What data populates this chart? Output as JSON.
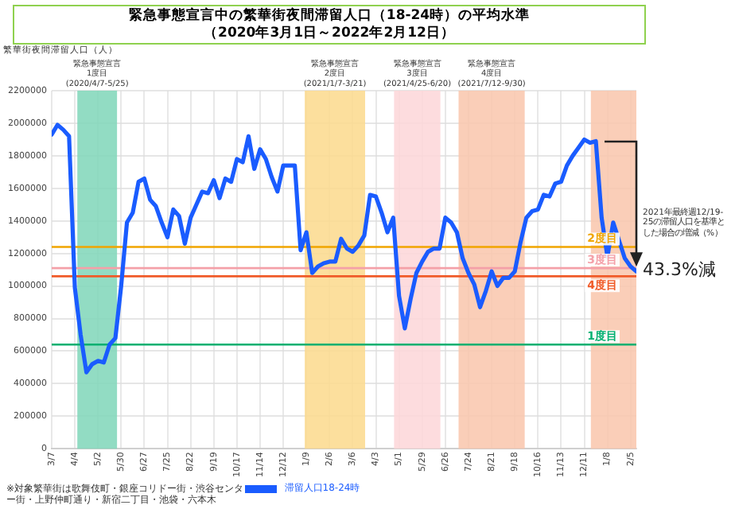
{
  "chart_data": {
    "type": "line",
    "title": "緊急事態宣言中の繁華街夜間滞留人口（18-24時）の平均水準",
    "subtitle": "（2020年3月1日～2022年2月12日）",
    "ylabel": "繁華街夜間滞留人口（人）",
    "x": [
      "2020-03-07",
      "2020-03-14",
      "2020-03-21",
      "2020-03-28",
      "2020-04-04",
      "2020-04-11",
      "2020-04-18",
      "2020-04-25",
      "2020-05-02",
      "2020-05-09",
      "2020-05-16",
      "2020-05-23",
      "2020-05-30",
      "2020-06-06",
      "2020-06-13",
      "2020-06-20",
      "2020-06-27",
      "2020-07-04",
      "2020-07-11",
      "2020-07-18",
      "2020-07-25",
      "2020-08-01",
      "2020-08-08",
      "2020-08-15",
      "2020-08-22",
      "2020-08-29",
      "2020-09-05",
      "2020-09-12",
      "2020-09-19",
      "2020-09-26",
      "2020-10-03",
      "2020-10-10",
      "2020-10-17",
      "2020-10-24",
      "2020-10-31",
      "2020-11-07",
      "2020-11-14",
      "2020-11-21",
      "2020-11-28",
      "2020-12-05",
      "2020-12-12",
      "2020-12-19",
      "2020-12-26",
      "2021-01-02",
      "2021-01-09",
      "2021-01-16",
      "2021-01-23",
      "2021-01-30",
      "2021-02-06",
      "2021-02-13",
      "2021-02-20",
      "2021-02-27",
      "2021-03-06",
      "2021-03-13",
      "2021-03-20",
      "2021-03-27",
      "2021-04-03",
      "2021-04-10",
      "2021-04-17",
      "2021-04-24",
      "2021-05-01",
      "2021-05-08",
      "2021-05-15",
      "2021-05-22",
      "2021-05-29",
      "2021-06-05",
      "2021-06-12",
      "2021-06-19",
      "2021-06-26",
      "2021-07-03",
      "2021-07-10",
      "2021-07-17",
      "2021-07-24",
      "2021-07-31",
      "2021-08-07",
      "2021-08-14",
      "2021-08-21",
      "2021-08-28",
      "2021-09-04",
      "2021-09-11",
      "2021-09-18",
      "2021-09-25",
      "2021-10-02",
      "2021-10-09",
      "2021-10-16",
      "2021-10-23",
      "2021-10-30",
      "2021-11-06",
      "2021-11-13",
      "2021-11-20",
      "2021-11-27",
      "2021-12-04",
      "2021-12-11",
      "2021-12-18",
      "2021-12-25",
      "2022-01-01",
      "2022-01-08",
      "2022-01-15",
      "2022-01-22",
      "2022-01-29",
      "2022-02-05",
      "2022-02-12"
    ],
    "series": [
      {
        "name": "滞留人口18-24時",
        "color": "#1a5cff",
        "values": [
          1930000,
          1990000,
          1960000,
          1920000,
          990000,
          700000,
          470000,
          520000,
          540000,
          530000,
          640000,
          680000,
          1000000,
          1390000,
          1450000,
          1640000,
          1660000,
          1530000,
          1490000,
          1390000,
          1300000,
          1470000,
          1430000,
          1260000,
          1420000,
          1500000,
          1580000,
          1570000,
          1650000,
          1540000,
          1660000,
          1640000,
          1780000,
          1760000,
          1920000,
          1720000,
          1840000,
          1780000,
          1670000,
          1580000,
          1740000,
          1740000,
          1740000,
          1220000,
          1330000,
          1080000,
          1120000,
          1140000,
          1150000,
          1150000,
          1290000,
          1230000,
          1210000,
          1250000,
          1310000,
          1560000,
          1550000,
          1450000,
          1330000,
          1420000,
          940000,
          740000,
          920000,
          1080000,
          1150000,
          1210000,
          1230000,
          1230000,
          1420000,
          1390000,
          1330000,
          1170000,
          1080000,
          1010000,
          870000,
          970000,
          1090000,
          1000000,
          1050000,
          1050000,
          1090000,
          1270000,
          1420000,
          1460000,
          1470000,
          1560000,
          1550000,
          1630000,
          1640000,
          1740000,
          1800000,
          1850000,
          1900000,
          1880000,
          1890000,
          1420000,
          1180000,
          1390000,
          1280000,
          1170000,
          1120000,
          1090000
        ]
      }
    ],
    "xlim": [
      "2020-03-07",
      "2022-02-12"
    ],
    "xticks": [
      {
        "value": "2020-03-07",
        "label": "3/7"
      },
      {
        "value": "2020-04-04",
        "label": "4/4"
      },
      {
        "value": "2020-05-02",
        "label": "5/2"
      },
      {
        "value": "2020-05-30",
        "label": "5/30"
      },
      {
        "value": "2020-06-27",
        "label": "6/27"
      },
      {
        "value": "2020-07-25",
        "label": "7/25"
      },
      {
        "value": "2020-08-22",
        "label": "8/22"
      },
      {
        "value": "2020-09-19",
        "label": "9/19"
      },
      {
        "value": "2020-10-17",
        "label": "10/17"
      },
      {
        "value": "2020-11-14",
        "label": "11/14"
      },
      {
        "value": "2020-12-12",
        "label": "12/12"
      },
      {
        "value": "2021-01-09",
        "label": "1/9"
      },
      {
        "value": "2021-02-06",
        "label": "2/6"
      },
      {
        "value": "2021-03-06",
        "label": "3/6"
      },
      {
        "value": "2021-04-03",
        "label": "4/3"
      },
      {
        "value": "2021-05-01",
        "label": "5/1"
      },
      {
        "value": "2021-05-29",
        "label": "5/29"
      },
      {
        "value": "2021-06-26",
        "label": "6/26"
      },
      {
        "value": "2021-07-24",
        "label": "7/24"
      },
      {
        "value": "2021-08-21",
        "label": "8/21"
      },
      {
        "value": "2021-09-18",
        "label": "9/18"
      },
      {
        "value": "2021-10-16",
        "label": "10/16"
      },
      {
        "value": "2021-11-13",
        "label": "11/13"
      },
      {
        "value": "2021-12-11",
        "label": "12/11"
      },
      {
        "value": "2022-01-08",
        "label": "1/8"
      },
      {
        "value": "2022-02-05",
        "label": "2/5"
      }
    ],
    "ylim": [
      0,
      2200000
    ],
    "yticks": [
      0,
      200000,
      400000,
      600000,
      800000,
      1000000,
      1200000,
      1400000,
      1600000,
      1800000,
      2000000,
      2200000
    ],
    "grid": true,
    "legend": "bottom",
    "marker": "none",
    "bands": [
      {
        "axis": "x",
        "from": "2020-04-07",
        "to": "2020-05-25",
        "label": "緊急事態宣言\n1度目\n(2020/4/7-5/25)",
        "color": "#7fd6b8"
      },
      {
        "axis": "x",
        "from": "2021-01-07",
        "to": "2021-03-21",
        "label": "緊急事態宣言\n2度目\n(2021/1/7-3/21)",
        "color": "#fbd98c"
      },
      {
        "axis": "x",
        "from": "2021-04-25",
        "to": "2021-06-20",
        "label": "緊急事態宣言\n3度目\n(2021/4/25-6/20)",
        "color": "#fdd6d8"
      },
      {
        "axis": "x",
        "from": "2021-07-12",
        "to": "2021-09-30",
        "label": "緊急事態宣言\n4度目\n(2021/7/12-9/30)",
        "color": "#f9c6ab"
      },
      {
        "axis": "x",
        "from": "2021-12-19",
        "to": "2022-02-12",
        "color": "#f9c6ab"
      }
    ],
    "ref_lines": [
      {
        "axis": "y",
        "value": 640000,
        "label": "1度目",
        "color": "#00b070"
      },
      {
        "axis": "y",
        "value": 1240000,
        "label": "2度目",
        "color": "#f0a500"
      },
      {
        "axis": "y",
        "value": 1110000,
        "label": "3度目",
        "color": "#f4a0a8"
      },
      {
        "axis": "y",
        "value": 1060000,
        "label": "4度目",
        "color": "#f05a28"
      }
    ],
    "annotations": [
      "2021年最終週12/19-25の滞留人口を基準とした場合の増減（%）",
      {
        "text": "43.3%減",
        "x": "2022-02-12",
        "y": 1090000
      },
      "※対象繁華街は歌舞伎町・銀座コリドー街・渋谷センター街・上野仲町通り・新宿二丁目・池袋・六本木"
    ]
  }
}
